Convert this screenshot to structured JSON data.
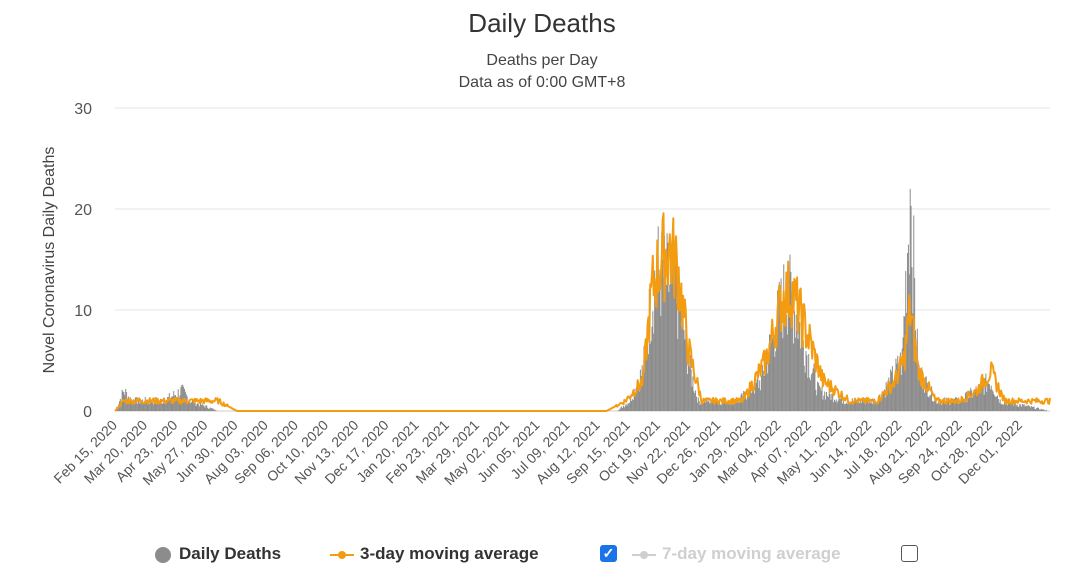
{
  "chart_data": {
    "type": "bar",
    "title": "Daily Deaths",
    "subtitle_lines": [
      "Deaths per Day",
      "Data as of 0:00 GMT+8"
    ],
    "ylabel": "Novel Coronavirus Daily Deaths",
    "ylim": [
      0,
      30
    ],
    "yticks": [
      "0",
      "10",
      "20",
      "30"
    ],
    "grid": true,
    "x_start": "2020-02-15",
    "x_end": "2022-12-31",
    "xtick_labels": [
      "Feb 15, 2020",
      "Mar 20, 2020",
      "Apr 23, 2020",
      "May 27, 2020",
      "Jun 30, 2020",
      "Aug 03, 2020",
      "Sep 06, 2020",
      "Oct 10, 2020",
      "Nov 13, 2020",
      "Dec 17, 2020",
      "Jan 20, 2021",
      "Feb 23, 2021",
      "Mar 29, 2021",
      "May 02, 2021",
      "Jun 05, 2021",
      "Jul 09, 2021",
      "Aug 12, 2021",
      "Sep 15, 2021",
      "Oct 19, 2021",
      "Nov 22, 2021",
      "Dec 26, 2021",
      "Jan 29, 2022",
      "Mar 04, 2022",
      "Apr 07, 2022",
      "May 11, 2022",
      "Jun 14, 2022",
      "Jul 18, 2022",
      "Aug 21, 2022",
      "Sep 24, 2022",
      "Oct 28, 2022",
      "Dec 01, 2022"
    ],
    "series": [
      {
        "name": "Daily Deaths",
        "type": "bar",
        "color": "#8c8c8c",
        "approx_points": [
          [
            "2020-02-15",
            0
          ],
          [
            "2020-02-25",
            2
          ],
          [
            "2020-03-05",
            1
          ],
          [
            "2020-04-10",
            1
          ],
          [
            "2020-04-30",
            2
          ],
          [
            "2020-05-10",
            1
          ],
          [
            "2020-06-10",
            0
          ],
          [
            "2021-09-01",
            0
          ],
          [
            "2021-09-15",
            1
          ],
          [
            "2021-09-30",
            4
          ],
          [
            "2021-10-08",
            10
          ],
          [
            "2021-10-15",
            14
          ],
          [
            "2021-10-25",
            13
          ],
          [
            "2021-11-05",
            12
          ],
          [
            "2021-11-15",
            8
          ],
          [
            "2021-11-22",
            4
          ],
          [
            "2021-12-01",
            1
          ],
          [
            "2022-01-15",
            1
          ],
          [
            "2022-02-10",
            3
          ],
          [
            "2022-02-25",
            8
          ],
          [
            "2022-03-10",
            12
          ],
          [
            "2022-03-20",
            10
          ],
          [
            "2022-04-01",
            6
          ],
          [
            "2022-04-15",
            2
          ],
          [
            "2022-05-15",
            1
          ],
          [
            "2022-06-20",
            1
          ],
          [
            "2022-07-05",
            3
          ],
          [
            "2022-07-18",
            5
          ],
          [
            "2022-07-27",
            22
          ],
          [
            "2022-08-05",
            4
          ],
          [
            "2022-08-25",
            1
          ],
          [
            "2022-09-20",
            1
          ],
          [
            "2022-10-10",
            2
          ],
          [
            "2022-10-25",
            3
          ],
          [
            "2022-11-05",
            1
          ],
          [
            "2022-12-31",
            0
          ]
        ]
      },
      {
        "name": "3-day moving average",
        "type": "line",
        "color": "#f39c12",
        "approx_points": [
          [
            "2020-02-15",
            0
          ],
          [
            "2020-02-25",
            1
          ],
          [
            "2020-04-30",
            1
          ],
          [
            "2020-06-10",
            1
          ],
          [
            "2020-07-01",
            0
          ],
          [
            "2021-08-20",
            0
          ],
          [
            "2021-09-10",
            1
          ],
          [
            "2021-09-30",
            3
          ],
          [
            "2021-10-10",
            12
          ],
          [
            "2021-10-20",
            15
          ],
          [
            "2021-10-30",
            16
          ],
          [
            "2021-11-08",
            14
          ],
          [
            "2021-11-20",
            6
          ],
          [
            "2021-12-05",
            1
          ],
          [
            "2022-01-20",
            1
          ],
          [
            "2022-02-15",
            5
          ],
          [
            "2022-03-05",
            11
          ],
          [
            "2022-03-15",
            12
          ],
          [
            "2022-04-01",
            8
          ],
          [
            "2022-04-20",
            3
          ],
          [
            "2022-05-20",
            1
          ],
          [
            "2022-06-20",
            1
          ],
          [
            "2022-07-10",
            3
          ],
          [
            "2022-07-20",
            5
          ],
          [
            "2022-07-27",
            10
          ],
          [
            "2022-08-05",
            4
          ],
          [
            "2022-08-25",
            1
          ],
          [
            "2022-09-20",
            1
          ],
          [
            "2022-10-10",
            2
          ],
          [
            "2022-10-25",
            4
          ],
          [
            "2022-11-10",
            1
          ],
          [
            "2022-12-31",
            1
          ]
        ]
      }
    ]
  },
  "legend": {
    "items": [
      {
        "name": "Daily Deaths",
        "color": "#8c8c8c",
        "active": true
      },
      {
        "name": "3-day moving average",
        "color": "#f39c12",
        "active": true,
        "checkbox": "checked"
      },
      {
        "name": "7-day moving average",
        "color": "#cfcfcf",
        "active": false,
        "checkbox": "unchecked"
      }
    ]
  }
}
